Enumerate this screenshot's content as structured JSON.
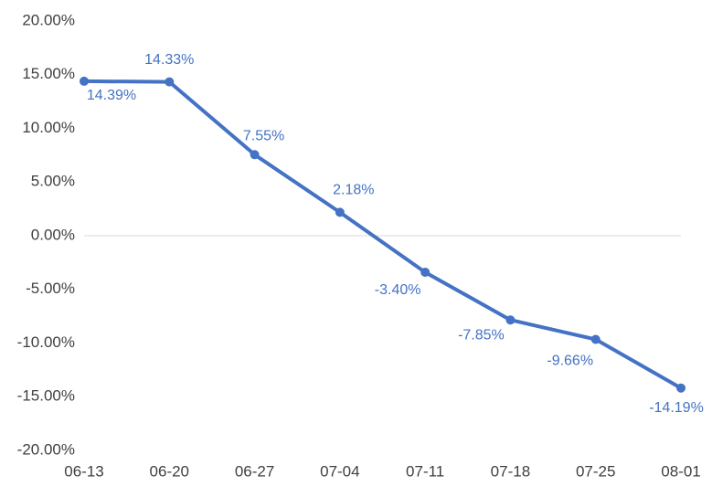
{
  "chart_data": {
    "type": "line",
    "title": "",
    "xlabel": "",
    "ylabel": "",
    "categories": [
      "06-13",
      "06-20",
      "06-27",
      "07-04",
      "07-11",
      "07-18",
      "07-25",
      "08-01"
    ],
    "series": [
      {
        "values": [
          14.39,
          14.33,
          7.55,
          2.18,
          -3.4,
          -7.85,
          -9.66,
          -14.19
        ],
        "data_labels": [
          "14.39%",
          "14.33%",
          "7.55%",
          "2.18%",
          "-3.40%",
          "-7.85%",
          "-9.66%",
          "-14.19%"
        ],
        "color": "#4472C4"
      }
    ],
    "ylim": [
      -20,
      20
    ],
    "y_ticks": [
      20,
      15,
      10,
      5,
      0,
      -5,
      -10,
      -15,
      -20
    ],
    "y_tick_labels": [
      "20.00%",
      "15.00%",
      "10.00%",
      "5.00%",
      "0.00%",
      "-5.00%",
      "-10.00%",
      "-15.00%",
      "-20.00%"
    ],
    "grid": false,
    "zero_line": true,
    "legend": "none",
    "colors": {
      "series": "#4472C4",
      "axis_text": "#404040",
      "zero_line": "#D9D9D9"
    }
  }
}
